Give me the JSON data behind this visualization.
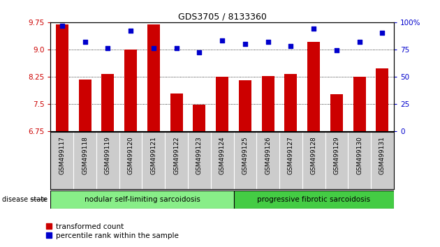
{
  "title": "GDS3705 / 8133360",
  "categories": [
    "GSM499117",
    "GSM499118",
    "GSM499119",
    "GSM499120",
    "GSM499121",
    "GSM499122",
    "GSM499123",
    "GSM499124",
    "GSM499125",
    "GSM499126",
    "GSM499127",
    "GSM499128",
    "GSM499129",
    "GSM499130",
    "GSM499131"
  ],
  "bar_values": [
    9.68,
    8.17,
    8.32,
    9.0,
    9.68,
    7.79,
    7.47,
    8.25,
    8.14,
    8.26,
    8.33,
    9.2,
    7.76,
    8.25,
    8.47
  ],
  "dot_values": [
    97,
    82,
    76,
    92,
    76,
    76,
    72,
    83,
    80,
    82,
    78,
    94,
    74,
    82,
    90
  ],
  "ylim_left": [
    6.75,
    9.75
  ],
  "ylim_right": [
    0,
    100
  ],
  "yticks_left": [
    6.75,
    7.5,
    8.25,
    9.0,
    9.75
  ],
  "yticks_right": [
    0,
    25,
    50,
    75,
    100
  ],
  "bar_color": "#cc0000",
  "dot_color": "#0000cc",
  "bar_bottom": 6.75,
  "group1_label": "nodular self-limiting sarcoidosis",
  "group2_label": "progressive fibrotic sarcoidosis",
  "group1_count": 8,
  "group2_count": 7,
  "disease_state_label": "disease state",
  "legend_bar": "transformed count",
  "legend_dot": "percentile rank within the sample",
  "tick_label_area_color": "#cccccc",
  "group1_color": "#88ee88",
  "group2_color": "#44cc44",
  "right_tick_labels": [
    "0",
    "25",
    "50",
    "75",
    "100%"
  ]
}
